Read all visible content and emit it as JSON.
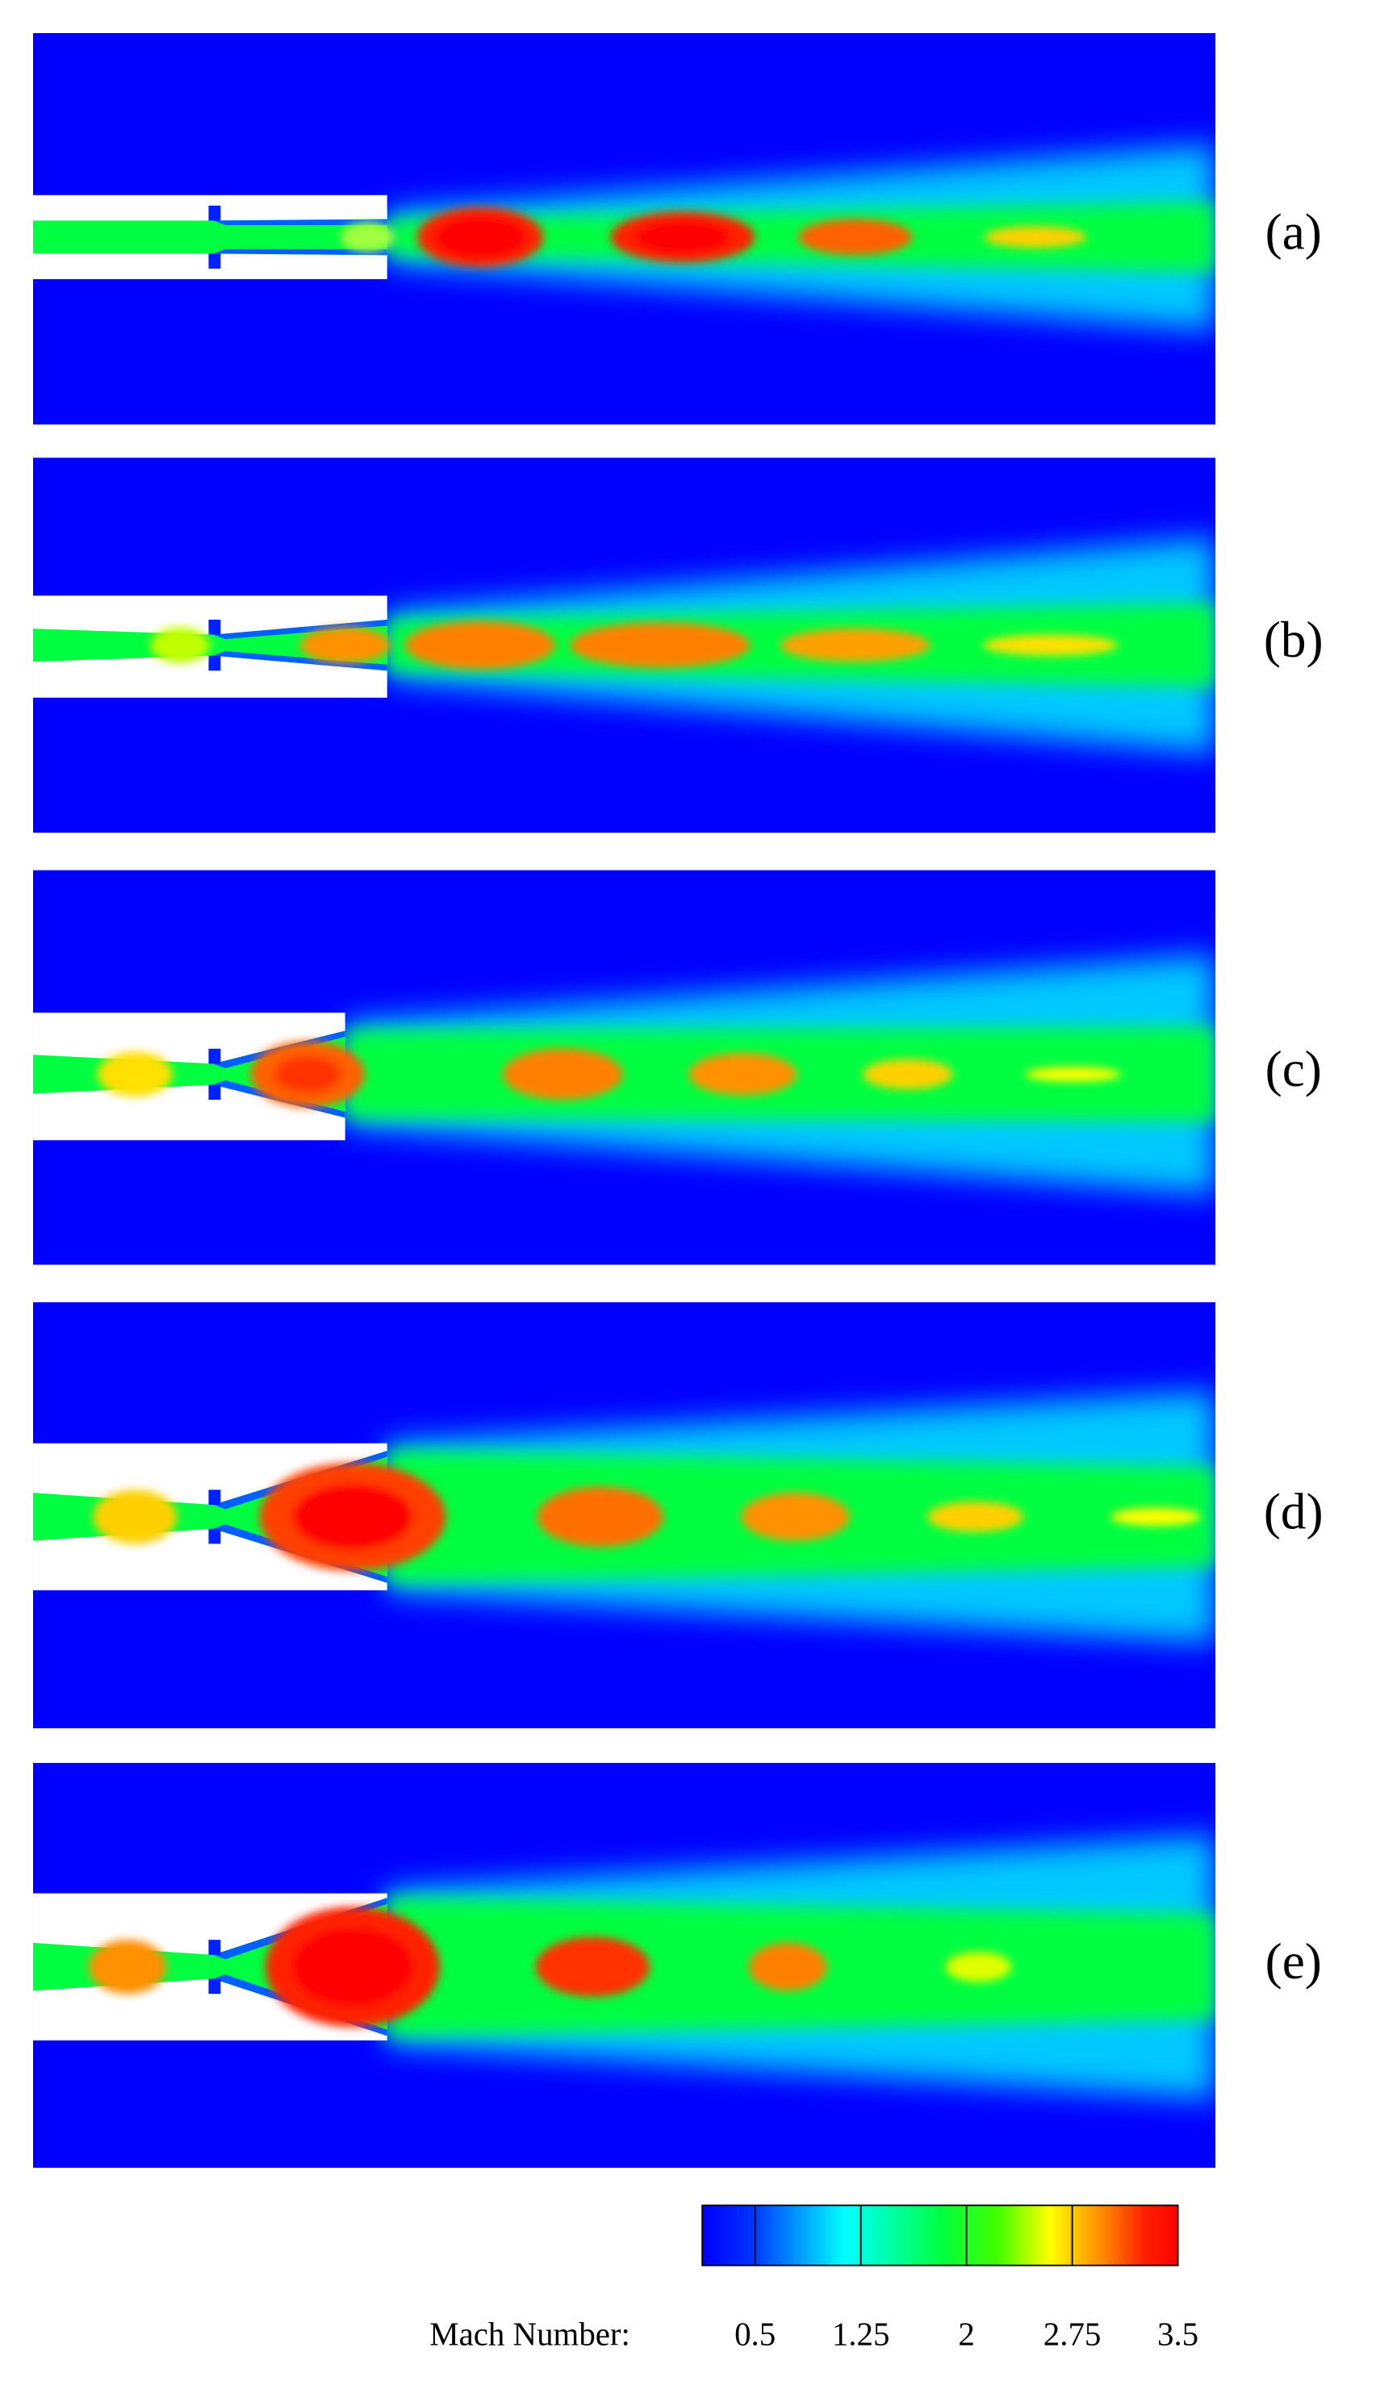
{
  "panels": [
    {
      "label": "(a)"
    },
    {
      "label": "(b)"
    },
    {
      "label": "(c)"
    },
    {
      "label": "(d)"
    },
    {
      "label": "(e)"
    }
  ],
  "colorbar": {
    "title": "Mach Number:",
    "clim": [
      0.125,
      3.5
    ],
    "ticks": [
      0.5,
      1.25,
      2,
      2.75,
      3.5
    ]
  }
}
